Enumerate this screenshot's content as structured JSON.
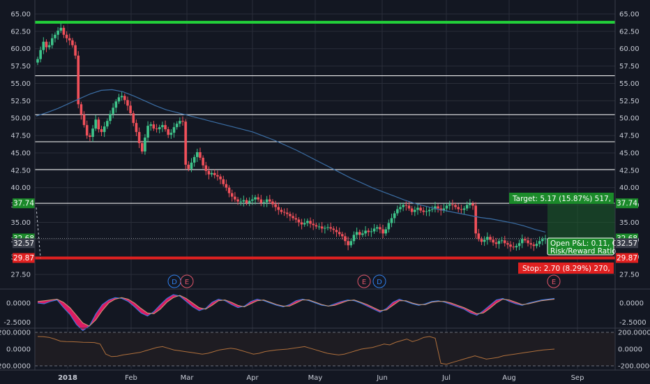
{
  "chart_data": {
    "type": "candlestick",
    "price_axis": {
      "min": 26.0,
      "max": 66.0,
      "ticks": [
        "65.00",
        "62.50",
        "60.00",
        "57.50",
        "55.00",
        "52.50",
        "50.00",
        "47.50",
        "45.00",
        "42.50",
        "40.00",
        "37.50",
        "35.00",
        "32.50",
        "30.00",
        "27.50"
      ]
    },
    "x_labels": [
      "2018",
      "Feb",
      "Mar",
      "Apr",
      "May",
      "Jun",
      "Jul",
      "Aug",
      "Sep"
    ],
    "horizontal_levels": [
      {
        "price": 63.8,
        "color": "#22d13a",
        "width": 4
      },
      {
        "price": 56.1,
        "color": "#ffffff",
        "width": 1
      },
      {
        "price": 50.5,
        "color": "#ffffff",
        "width": 1
      },
      {
        "price": 46.6,
        "color": "#ffffff",
        "width": 1
      },
      {
        "price": 42.6,
        "color": "#ffffff",
        "width": 1
      },
      {
        "price": 37.74,
        "color": "#ffffff",
        "width": 1
      }
    ],
    "close_series": [
      58.5,
      59.8,
      61.0,
      60.2,
      60.5,
      61.5,
      62.0,
      62.6,
      63.0,
      62.0,
      61.5,
      61.2,
      60.5,
      59.0,
      52.0,
      50.5,
      49.0,
      47.5,
      47.3,
      48.5,
      49.8,
      48.4,
      48.0,
      48.8,
      49.6,
      50.6,
      51.5,
      52.4,
      53.0,
      53.2,
      52.6,
      51.8,
      50.7,
      49.3,
      48.0,
      46.4,
      45.2,
      47.2,
      48.9,
      49.1,
      48.5,
      48.4,
      48.7,
      49.0,
      48.4,
      47.6,
      47.9,
      48.7,
      49.2,
      49.6,
      49.5,
      43.3,
      42.7,
      43.6,
      44.4,
      45.1,
      44.3,
      43.2,
      42.4,
      41.9,
      42.1,
      41.8,
      41.6,
      41.2,
      40.5,
      40.0,
      39.2,
      38.7,
      38.3,
      38.0,
      38.0,
      38.2,
      37.8,
      38.1,
      38.3,
      38.6,
      38.3,
      37.8,
      37.9,
      38.3,
      38.0,
      37.6,
      37.2,
      36.8,
      36.5,
      36.4,
      36.2,
      35.9,
      35.6,
      35.4,
      35.0,
      34.7,
      34.9,
      35.2,
      34.8,
      34.6,
      34.4,
      34.4,
      34.1,
      34.2,
      34.3,
      34.1,
      33.9,
      33.6,
      33.3,
      33.0,
      32.3,
      31.7,
      32.3,
      33.2,
      33.6,
      33.2,
      33.4,
      33.8,
      33.6,
      33.7,
      34.1,
      34.3,
      34.0,
      33.4,
      34.0,
      34.9,
      35.6,
      36.3,
      36.9,
      37.2,
      37.5,
      37.4,
      37.0,
      36.5,
      36.8,
      37.1,
      36.7,
      36.5,
      36.6,
      36.8,
      36.9,
      37.3,
      37.0,
      36.7,
      37.0,
      37.4,
      37.6,
      37.5,
      37.2,
      36.9,
      36.8,
      37.0,
      37.5,
      37.7,
      37.4,
      33.4,
      32.6,
      32.2,
      32.5,
      32.9,
      32.5,
      32.1,
      31.9,
      32.3,
      32.4,
      32.0,
      31.8,
      31.5,
      31.4,
      31.6,
      32.0,
      32.6,
      32.4,
      32.0,
      31.8,
      31.6,
      31.9,
      32.3,
      32.6,
      32.7
    ],
    "ma_series": [
      50.3,
      50.8,
      51.4,
      52.1,
      52.8,
      53.5,
      54.0,
      54.1,
      53.8,
      53.2,
      52.5,
      51.8,
      51.2,
      50.8,
      50.4,
      50.0,
      49.6,
      49.2,
      48.8,
      48.4,
      48.0,
      47.4,
      46.8,
      46.1,
      45.4,
      44.6,
      43.8,
      43.0,
      42.2,
      41.4,
      40.7,
      40.0,
      39.4,
      38.8,
      38.2,
      37.7,
      37.3,
      36.9,
      36.6,
      36.3,
      36.0,
      35.7,
      35.5,
      35.2,
      34.9,
      34.5,
      34.0,
      33.6
    ],
    "stochastic": [
      {
        "color": "#2f80ed",
        "values": [
          0.0,
          -0.1,
          0.2,
          0.4,
          -0.6,
          -1.5,
          -2.8,
          -3.6,
          -3.0,
          -1.4,
          -0.2,
          0.4,
          0.7,
          0.6,
          0.2,
          -0.5,
          -1.3,
          -1.7,
          -1.1,
          -0.2,
          0.6,
          1.1,
          0.9,
          0.2,
          -0.5,
          -1.0,
          -0.7,
          0.1,
          0.5,
          0.3,
          -0.2,
          -0.6,
          -0.4,
          0.2,
          0.5,
          0.3,
          0.0,
          -0.3,
          -0.5,
          -0.2,
          0.3,
          0.5,
          0.3,
          0.0,
          -0.3,
          -0.4,
          -0.1,
          0.2,
          0.4,
          0.3,
          0.0,
          -0.4,
          -0.8,
          -1.2,
          -0.7,
          0.1,
          0.5,
          0.2,
          -0.1,
          -0.3,
          -0.1,
          0.2,
          0.3,
          0.1,
          -0.2,
          -0.5,
          -0.8,
          -1.3,
          -1.6,
          -1.0,
          -0.3,
          0.4,
          0.6,
          0.2,
          -0.1,
          -0.3,
          0.0,
          0.2,
          0.4,
          0.5,
          0.6
        ]
      },
      {
        "color": "#d6a07a",
        "values": [
          0.2,
          0.3,
          0.4,
          0.5,
          0.1,
          -0.6,
          -1.6,
          -2.6,
          -3.0,
          -2.2,
          -1.0,
          0.0,
          0.5,
          0.7,
          0.5,
          0.0,
          -0.7,
          -1.3,
          -1.4,
          -0.8,
          0.1,
          0.7,
          1.0,
          0.6,
          0.0,
          -0.6,
          -0.8,
          -0.3,
          0.3,
          0.4,
          0.1,
          -0.3,
          -0.5,
          -0.1,
          0.3,
          0.4,
          0.1,
          -0.2,
          -0.4,
          -0.4,
          0.0,
          0.4,
          0.4,
          0.1,
          -0.2,
          -0.4,
          -0.3,
          0.0,
          0.3,
          0.4,
          0.1,
          -0.2,
          -0.6,
          -1.0,
          -0.9,
          -0.3,
          0.3,
          0.3,
          0.0,
          -0.2,
          -0.2,
          0.1,
          0.2,
          0.2,
          0.0,
          -0.3,
          -0.6,
          -1.0,
          -1.4,
          -1.3,
          -0.7,
          0.0,
          0.5,
          0.4,
          0.1,
          -0.2,
          -0.1,
          0.1,
          0.3,
          0.4,
          0.5
        ]
      }
    ],
    "stoch_axis": {
      "ticks": [
        "0.0000",
        "-2.5000"
      ]
    },
    "osc_series": [
      150,
      148,
      140,
      120,
      95,
      90,
      88,
      85,
      82,
      80,
      78,
      60,
      -60,
      -90,
      -85,
      -70,
      -60,
      -50,
      -40,
      -20,
      0,
      20,
      30,
      10,
      -10,
      -20,
      -30,
      -40,
      -50,
      -60,
      -50,
      -30,
      -10,
      0,
      10,
      0,
      -20,
      -40,
      -60,
      -50,
      -30,
      -20,
      -10,
      -5,
      0,
      10,
      20,
      30,
      10,
      -10,
      -30,
      -50,
      -60,
      -70,
      -60,
      -40,
      -20,
      0,
      10,
      20,
      40,
      60,
      50,
      80,
      100,
      120,
      90,
      110,
      140,
      150,
      130,
      -170,
      -180,
      -160,
      -140,
      -120,
      -100,
      -80,
      -100,
      -120,
      -110,
      -100,
      -80,
      -70,
      -60,
      -50,
      -40,
      -30,
      -20,
      -10,
      -5,
      0
    ],
    "osc_axis": {
      "ticks": [
        "200.0000",
        "0.0000",
        "-200.0000"
      ]
    },
    "events": [
      {
        "label": "D",
        "stroke": "#2f80ed"
      },
      {
        "label": "E",
        "stroke": "#e0566a"
      },
      {
        "label": "E",
        "stroke": "#e0566a"
      },
      {
        "label": "D",
        "stroke": "#2f80ed"
      },
      {
        "label": "E",
        "stroke": "#e0566a"
      }
    ],
    "position": {
      "target_label": "Target: 5.17 (15.87%) 517, ",
      "stop_label": "Stop: 2.70 (8.29%) 270, ",
      "pnl_line1": "Open P&L: 0.11, C",
      "pnl_line2": "Risk/Reward Ratio",
      "entry": 32.57,
      "target": 37.74,
      "stop": 29.87,
      "current": 32.68
    },
    "price_badges": [
      {
        "text": "37.74",
        "color": "#1b8a2a",
        "side": "left",
        "price": 37.74
      },
      {
        "text": "32.68",
        "color": "#1b8a2a",
        "side": "left",
        "price": 32.68
      },
      {
        "text": "32.57",
        "color": "#3a3e4a",
        "side": "left",
        "price": 32.0
      },
      {
        "text": "29.87",
        "color": "#e02020",
        "side": "left",
        "price": 29.87
      },
      {
        "text": "37.74",
        "color": "#1b8a2a",
        "side": "right",
        "price": 37.74
      },
      {
        "text": "32.68",
        "color": "#1b8a2a",
        "side": "right",
        "price": 32.68
      },
      {
        "text": "32.57",
        "color": "#3a3e4a",
        "side": "right",
        "price": 32.0
      },
      {
        "text": "29.87",
        "color": "#e02020",
        "side": "right",
        "price": 29.87
      }
    ],
    "colors": {
      "up": "#3ec48a",
      "down": "#f0505a",
      "grid": "#2a2e39",
      "ma": "#3b6ea5"
    }
  }
}
